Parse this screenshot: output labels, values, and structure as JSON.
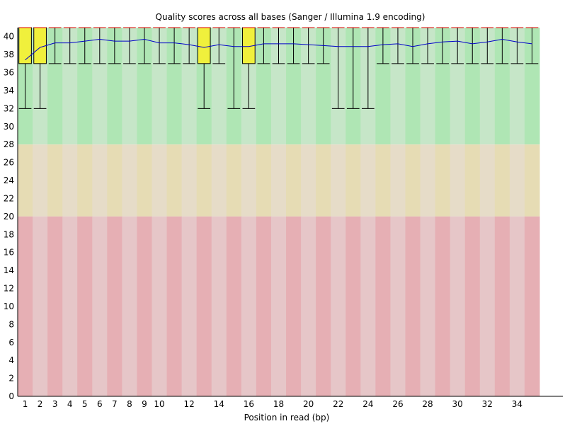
{
  "chart_data": {
    "type": "box",
    "title": "Quality scores across all bases (Sanger / Illumina 1.9 encoding)",
    "xlabel": "Position in read (bp)",
    "ylabel": "",
    "ylim": [
      0,
      41
    ],
    "y_ticks": [
      0,
      2,
      4,
      6,
      8,
      10,
      12,
      14,
      16,
      18,
      20,
      22,
      24,
      26,
      28,
      30,
      32,
      34,
      36,
      38,
      40
    ],
    "x_tick_labels": [
      "1",
      "2",
      "3",
      "4",
      "5",
      "6",
      "7",
      "8",
      "9",
      "10",
      "12",
      "14",
      "16",
      "18",
      "20",
      "22",
      "24",
      "26",
      "28",
      "30",
      "32",
      "34"
    ],
    "categories": [
      1,
      2,
      3,
      4,
      5,
      6,
      7,
      8,
      9,
      10,
      11,
      12,
      13,
      14,
      15,
      16,
      17,
      18,
      19,
      20,
      21,
      22,
      23,
      24,
      25,
      26,
      27,
      28,
      29,
      30,
      31,
      32,
      33,
      34,
      35
    ],
    "bands": [
      {
        "name": "good",
        "from": 28,
        "to": 41,
        "colors": [
          "#afe6b4",
          "#c6e6c8"
        ]
      },
      {
        "name": "reasonable",
        "from": 20,
        "to": 28,
        "colors": [
          "#e6dcb4",
          "#e6dcc8"
        ]
      },
      {
        "name": "poor",
        "from": 0,
        "to": 20,
        "colors": [
          "#e6afb4",
          "#e6c6c8"
        ]
      }
    ],
    "series": [
      {
        "name": "",
        "stat": "box",
        "box_color": "#f0f03c",
        "whisker_low": [
          32,
          32,
          37,
          37,
          37,
          37,
          37,
          37,
          37,
          37,
          37,
          37,
          32,
          37,
          32,
          32,
          37,
          37,
          37,
          37,
          37,
          32,
          32,
          32,
          37,
          37,
          37,
          37,
          37,
          37,
          37,
          37,
          37,
          37,
          37
        ],
        "q1": [
          37,
          37,
          41,
          41,
          41,
          41,
          41,
          41,
          41,
          41,
          41,
          41,
          37,
          41,
          41,
          37,
          41,
          41,
          41,
          41,
          41,
          41,
          41,
          41,
          41,
          41,
          41,
          41,
          41,
          41,
          41,
          41,
          41,
          41,
          41
        ],
        "median": [
          41,
          41,
          41,
          41,
          41,
          41,
          41,
          41,
          41,
          41,
          41,
          41,
          41,
          41,
          41,
          41,
          41,
          41,
          41,
          41,
          41,
          41,
          41,
          41,
          41,
          41,
          41,
          41,
          41,
          41,
          41,
          41,
          41,
          41,
          41
        ],
        "q3": [
          41,
          41,
          41,
          41,
          41,
          41,
          41,
          41,
          41,
          41,
          41,
          41,
          41,
          41,
          41,
          41,
          41,
          41,
          41,
          41,
          41,
          41,
          41,
          41,
          41,
          41,
          41,
          41,
          41,
          41,
          41,
          41,
          41,
          41,
          41
        ],
        "whisker_high": [
          41,
          41,
          41,
          41,
          41,
          41,
          41,
          41,
          41,
          41,
          41,
          41,
          41,
          41,
          41,
          41,
          41,
          41,
          41,
          41,
          41,
          41,
          41,
          41,
          41,
          41,
          41,
          41,
          41,
          41,
          41,
          41,
          41,
          41,
          41
        ]
      },
      {
        "name": "",
        "stat": "mean",
        "color": "#0000c8",
        "values": [
          37.4,
          38.8,
          39.3,
          39.3,
          39.5,
          39.7,
          39.5,
          39.5,
          39.7,
          39.3,
          39.3,
          39.1,
          38.8,
          39.1,
          38.9,
          38.9,
          39.2,
          39.2,
          39.2,
          39.1,
          39.0,
          38.9,
          38.9,
          38.9,
          39.1,
          39.2,
          38.9,
          39.2,
          39.4,
          39.5,
          39.2,
          39.4,
          39.7,
          39.4,
          39.2
        ]
      }
    ],
    "median_color": "#e00000",
    "grid": false,
    "legend": "none"
  }
}
